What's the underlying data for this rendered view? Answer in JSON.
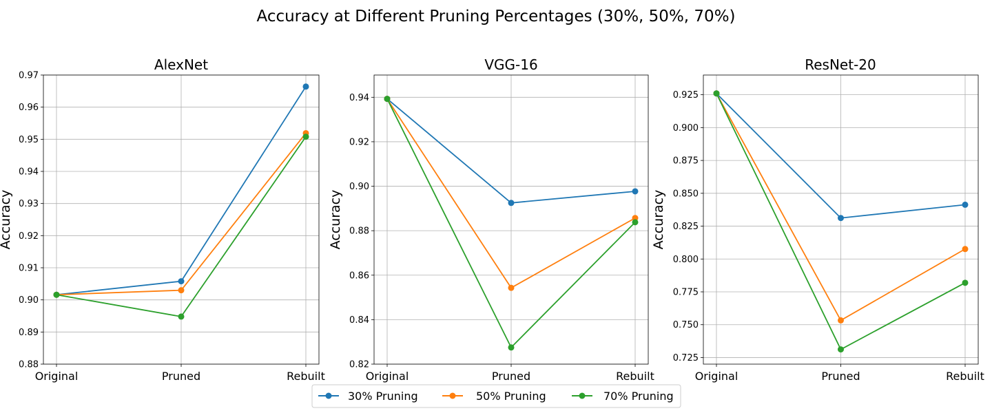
{
  "figure": {
    "suptitle": "Accuracy at Different Pruning Percentages (30%, 50%, 70%)"
  },
  "legend": {
    "placement": "bottom-center",
    "entries": [
      {
        "label": "30% Pruning",
        "color": "#1f77b4"
      },
      {
        "label": "50% Pruning",
        "color": "#ff7f0e"
      },
      {
        "label": "70% Pruning",
        "color": "#2ca02c"
      }
    ]
  },
  "chart_data": [
    {
      "type": "line",
      "title": "AlexNet",
      "xlabel": "",
      "ylabel": "Accuracy",
      "categories": [
        "Original",
        "Pruned",
        "Rebuilt"
      ],
      "ylim": [
        0.88,
        0.97
      ],
      "yticks": [
        0.88,
        0.89,
        0.9,
        0.91,
        0.92,
        0.93,
        0.94,
        0.95,
        0.96,
        0.97
      ],
      "ytick_labels": [
        "0.88",
        "0.89",
        "0.90",
        "0.91",
        "0.92",
        "0.93",
        "0.94",
        "0.95",
        "0.96",
        "0.97"
      ],
      "grid": true,
      "series": [
        {
          "name": "30% Pruning",
          "color": "#1f77b4",
          "values": [
            0.9016,
            0.9058,
            0.9664
          ]
        },
        {
          "name": "50% Pruning",
          "color": "#ff7f0e",
          "values": [
            0.9016,
            0.903,
            0.9519
          ]
        },
        {
          "name": "70% Pruning",
          "color": "#2ca02c",
          "values": [
            0.9016,
            0.8948,
            0.9508
          ]
        }
      ]
    },
    {
      "type": "line",
      "title": "VGG-16",
      "xlabel": "",
      "ylabel": "Accuracy",
      "categories": [
        "Original",
        "Pruned",
        "Rebuilt"
      ],
      "ylim": [
        0.82,
        0.95
      ],
      "yticks": [
        0.82,
        0.84,
        0.86,
        0.88,
        0.9,
        0.92,
        0.94
      ],
      "ytick_labels": [
        "0.82",
        "0.84",
        "0.86",
        "0.88",
        "0.90",
        "0.92",
        "0.94"
      ],
      "grid": true,
      "series": [
        {
          "name": "30% Pruning",
          "color": "#1f77b4",
          "values": [
            0.9393,
            0.8925,
            0.8977
          ]
        },
        {
          "name": "50% Pruning",
          "color": "#ff7f0e",
          "values": [
            0.9393,
            0.8543,
            0.8857
          ]
        },
        {
          "name": "70% Pruning",
          "color": "#2ca02c",
          "values": [
            0.9393,
            0.8275,
            0.8838
          ]
        }
      ]
    },
    {
      "type": "line",
      "title": "ResNet-20",
      "xlabel": "",
      "ylabel": "Accuracy",
      "categories": [
        "Original",
        "Pruned",
        "Rebuilt"
      ],
      "ylim": [
        0.72,
        0.94
      ],
      "yticks": [
        0.725,
        0.75,
        0.775,
        0.8,
        0.825,
        0.85,
        0.875,
        0.9,
        0.925
      ],
      "ytick_labels": [
        "0.725",
        "0.750",
        "0.775",
        "0.800",
        "0.825",
        "0.850",
        "0.875",
        "0.900",
        "0.925"
      ],
      "grid": true,
      "series": [
        {
          "name": "30% Pruning",
          "color": "#1f77b4",
          "values": [
            0.926,
            0.8312,
            0.8413
          ]
        },
        {
          "name": "50% Pruning",
          "color": "#ff7f0e",
          "values": [
            0.926,
            0.7533,
            0.8076
          ]
        },
        {
          "name": "70% Pruning",
          "color": "#2ca02c",
          "values": [
            0.926,
            0.7312,
            0.7819
          ]
        }
      ]
    }
  ]
}
